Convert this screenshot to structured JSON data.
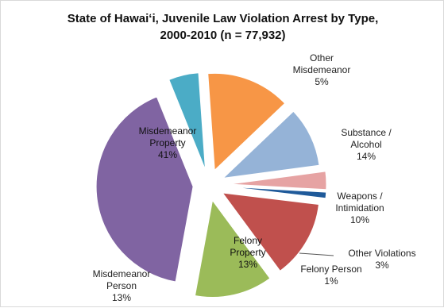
{
  "chart_data": {
    "type": "pie",
    "title_lines": [
      "State of Hawaiʻi, Juvenile Law Violation Arrest by Type,",
      "2000-2010 (n = 77,932)"
    ],
    "slices": [
      {
        "label_lines": [
          "Other",
          "Misdemeanor"
        ],
        "value_label": "5%",
        "value": 5,
        "color": "#4bacc6"
      },
      {
        "label_lines": [
          "Substance /",
          "Alcohol"
        ],
        "value_label": "14%",
        "value": 14,
        "color": "#f79646"
      },
      {
        "label_lines": [
          "Weapons /",
          "Intimidation"
        ],
        "value_label": "10%",
        "value": 10,
        "color": "#95b3d7"
      },
      {
        "label_lines": [
          "Other Violations"
        ],
        "value_label": "3%",
        "value": 3,
        "color": "#e6a3a3"
      },
      {
        "label_lines": [
          "Felony Person"
        ],
        "value_label": "1%",
        "value": 1,
        "color": "#1f5a9a"
      },
      {
        "label_lines": [
          "Felony",
          "Property"
        ],
        "value_label": "13%",
        "value": 13,
        "color": "#c0504d"
      },
      {
        "label_lines": [
          "Misdemeanor",
          "Person"
        ],
        "value_label": "13%",
        "value": 13,
        "color": "#9bbb59"
      },
      {
        "label_lines": [
          "Misdemeanor",
          "Property"
        ],
        "value_label": "41%",
        "value": 41,
        "color": "#8064a2"
      }
    ]
  }
}
